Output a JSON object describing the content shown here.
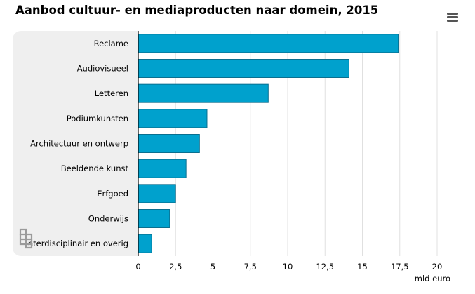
{
  "title": "Aanbod cultuur- en mediaproducten naar domein, 2015",
  "menu_icon": "hamburger-menu-icon",
  "logo_icon": "cbs-logo-icon",
  "colors": {
    "bar": "#00a1cd",
    "bar_border": "#0a6f8f",
    "panel": "#efefef",
    "grid": "#e0e0e0",
    "axis": "#000000"
  },
  "chart_data": {
    "type": "bar",
    "orientation": "horizontal",
    "title": "Aanbod cultuur- en mediaproducten naar domein, 2015",
    "categories": [
      "Reclame",
      "Audiovisueel",
      "Letteren",
      "Podiumkunsten",
      "Architectuur en ontwerp",
      "Beeldende kunst",
      "Erfgoed",
      "Onderwijs",
      "Interdisciplinair en overig"
    ],
    "values": [
      17.4,
      14.1,
      8.7,
      4.6,
      4.1,
      3.2,
      2.5,
      2.1,
      0.9
    ],
    "xlabel": "mld euro",
    "ylabel": "",
    "xlim": [
      0,
      20
    ],
    "ticks": [
      "0",
      "2,5",
      "5",
      "7,5",
      "10",
      "12,5",
      "15",
      "17,5",
      "20"
    ],
    "grid": true
  }
}
